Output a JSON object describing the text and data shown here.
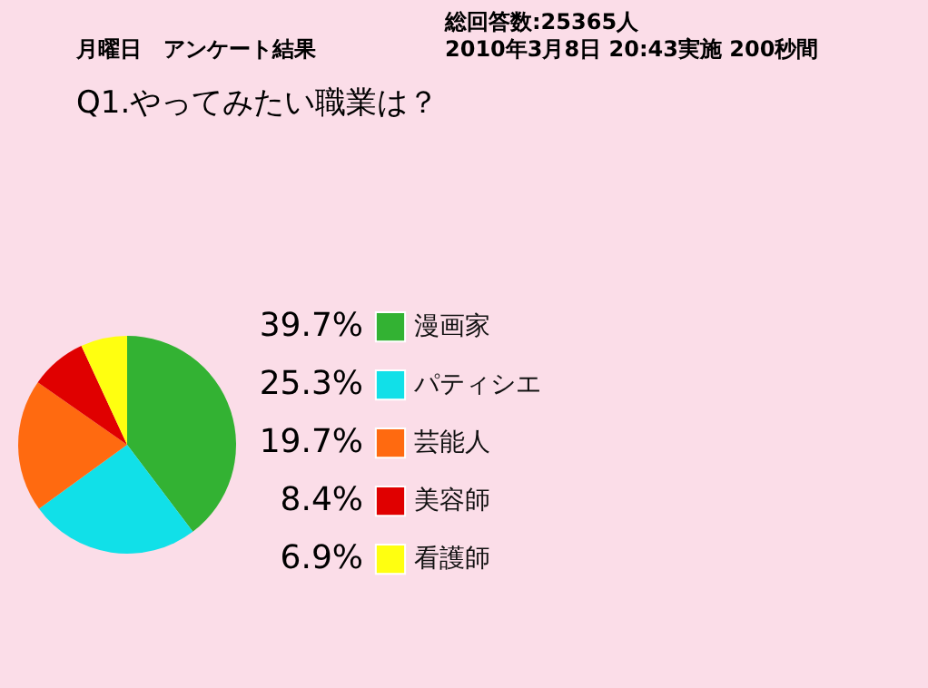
{
  "chart_data": {
    "type": "pie",
    "title": "Q1.やってみたい職業は？",
    "annotations": [
      "月曜日　アンケート結果",
      "総回答数:25365人",
      "2010年3月8日 20:43実施 200秒間"
    ],
    "categories": [
      "漫画家",
      "パティシエ",
      "芸能人",
      "美容師",
      "看護師"
    ],
    "values": [
      39.7,
      25.3,
      19.7,
      8.4,
      6.9
    ],
    "value_labels": [
      "39.7%",
      "25.3%",
      "19.7%",
      "8.4%",
      "6.9%"
    ],
    "colors": [
      "#33b233",
      "#11e0e8",
      "#ff6a10",
      "#e00000",
      "#ffff10"
    ],
    "legend": "right"
  }
}
